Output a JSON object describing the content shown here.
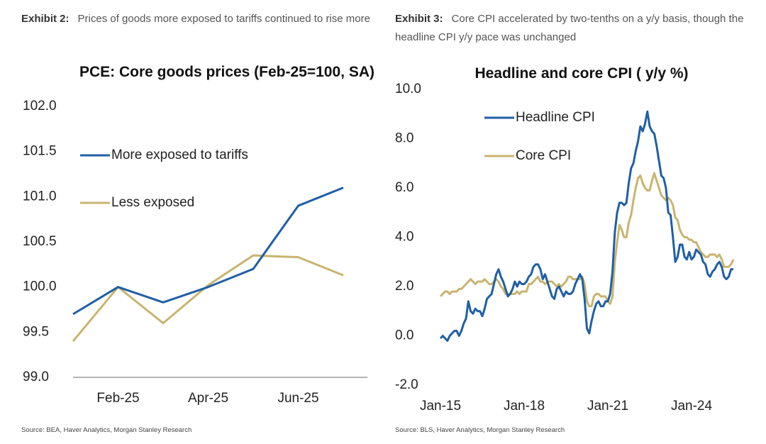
{
  "chart_data": [
    {
      "type": "line",
      "exhibit": "Exhibit 2:",
      "caption": "Prices of goods more exposed to tariffs continued to rise more",
      "title": "PCE: Core goods prices (Feb-25=100, SA)",
      "source": "Source: BEA, Haver Analytics, Morgan Stanley Research",
      "x": [
        "2025-01",
        "2025-02",
        "2025-03",
        "2025-04",
        "2025-05",
        "2025-06",
        "2025-07"
      ],
      "xlim": [
        "2025-01",
        "2025-07"
      ],
      "xticks": [
        {
          "value": "2025-02",
          "label": "Feb-25"
        },
        {
          "value": "2025-04",
          "label": "Apr-25"
        },
        {
          "value": "2025-06",
          "label": "Jun-25"
        }
      ],
      "ylim": [
        99,
        102
      ],
      "yticks": [
        {
          "value": 99,
          "label": "99.0"
        },
        99.5,
        {
          "value": 100,
          "label": "100.0"
        },
        100.5,
        {
          "value": 101,
          "label": "101.0"
        },
        101.5,
        {
          "value": 102,
          "label": "102.0"
        }
      ],
      "legend": "top-left",
      "series": [
        {
          "name": "More exposed to tariffs",
          "color": "#1f5fa6",
          "values": [
            99.7,
            100.0,
            99.83,
            100.0,
            100.2,
            100.9,
            101.1
          ]
        },
        {
          "name": "Less exposed",
          "color": "#c9b46f",
          "values": [
            99.4,
            100.0,
            99.6,
            100.02,
            100.35,
            100.33,
            100.13
          ]
        }
      ]
    },
    {
      "type": "line",
      "exhibit": "Exhibit 3:",
      "caption": "Core CPI accelerated by two-tenths on a y/y basis, though the headline CPI y/y pace was unchanged",
      "title": "Headline and core CPI ( y/y %)",
      "source": "Source: BLS, Haver Analytics, Morgan Stanley Research",
      "x": [
        "2015-01",
        "2015-02",
        "2015-03",
        "2015-04",
        "2015-05",
        "2015-06",
        "2015-07",
        "2015-08",
        "2015-09",
        "2015-10",
        "2015-11",
        "2015-12",
        "2016-01",
        "2016-02",
        "2016-03",
        "2016-04",
        "2016-05",
        "2016-06",
        "2016-07",
        "2016-08",
        "2016-09",
        "2016-10",
        "2016-11",
        "2016-12",
        "2017-01",
        "2017-02",
        "2017-03",
        "2017-04",
        "2017-05",
        "2017-06",
        "2017-07",
        "2017-08",
        "2017-09",
        "2017-10",
        "2017-11",
        "2017-12",
        "2018-01",
        "2018-02",
        "2018-03",
        "2018-04",
        "2018-05",
        "2018-06",
        "2018-07",
        "2018-08",
        "2018-09",
        "2018-10",
        "2018-11",
        "2018-12",
        "2019-01",
        "2019-02",
        "2019-03",
        "2019-04",
        "2019-05",
        "2019-06",
        "2019-07",
        "2019-08",
        "2019-09",
        "2019-10",
        "2019-11",
        "2019-12",
        "2020-01",
        "2020-02",
        "2020-03",
        "2020-04",
        "2020-05",
        "2020-06",
        "2020-07",
        "2020-08",
        "2020-09",
        "2020-10",
        "2020-11",
        "2020-12",
        "2021-01",
        "2021-02",
        "2021-03",
        "2021-04",
        "2021-05",
        "2021-06",
        "2021-07",
        "2021-08",
        "2021-09",
        "2021-10",
        "2021-11",
        "2021-12",
        "2022-01",
        "2022-02",
        "2022-03",
        "2022-04",
        "2022-05",
        "2022-06",
        "2022-07",
        "2022-08",
        "2022-09",
        "2022-10",
        "2022-11",
        "2022-12",
        "2023-01",
        "2023-02",
        "2023-03",
        "2023-04",
        "2023-05",
        "2023-06",
        "2023-07",
        "2023-08",
        "2023-09",
        "2023-10",
        "2023-11",
        "2023-12",
        "2024-01",
        "2024-02",
        "2024-03",
        "2024-04",
        "2024-05",
        "2024-06",
        "2024-07",
        "2024-08",
        "2024-09",
        "2024-10",
        "2024-11",
        "2024-12",
        "2025-01",
        "2025-02",
        "2025-03",
        "2025-04",
        "2025-05",
        "2025-06",
        "2025-07"
      ],
      "xlim": [
        "2015-01",
        "2025-07"
      ],
      "xticks": [
        {
          "value": "2015-01",
          "label": "Jan-15"
        },
        {
          "value": "2018-01",
          "label": "Jan-18"
        },
        {
          "value": "2021-01",
          "label": "Jan-21"
        },
        {
          "value": "2024-01",
          "label": "Jan-24"
        }
      ],
      "ylim": [
        -2,
        10
      ],
      "yticks": [
        {
          "value": -2,
          "label": "-2.0"
        },
        {
          "value": 0,
          "label": "0.0"
        },
        {
          "value": 2,
          "label": "2.0"
        },
        {
          "value": 4,
          "label": "4.0"
        },
        {
          "value": 6,
          "label": "6.0"
        },
        {
          "value": 8,
          "label": "8.0"
        },
        {
          "value": 10,
          "label": "10.0"
        }
      ],
      "legend": "top-left",
      "series": [
        {
          "name": "Headline CPI",
          "color": "#1f5fa6",
          "values": [
            -0.1,
            0.0,
            -0.1,
            -0.2,
            0.0,
            0.1,
            0.2,
            0.2,
            0.0,
            0.2,
            0.5,
            0.7,
            1.4,
            1.0,
            0.9,
            1.1,
            1.0,
            1.0,
            0.8,
            1.1,
            1.5,
            1.6,
            1.7,
            2.1,
            2.5,
            2.7,
            2.4,
            2.2,
            1.9,
            1.6,
            1.7,
            1.9,
            2.2,
            2.0,
            2.2,
            2.1,
            2.1,
            2.2,
            2.4,
            2.5,
            2.8,
            2.9,
            2.9,
            2.7,
            2.3,
            2.5,
            2.2,
            1.9,
            1.6,
            1.5,
            1.9,
            2.0,
            1.8,
            1.6,
            1.8,
            1.7,
            1.7,
            1.8,
            2.1,
            2.3,
            2.5,
            2.3,
            1.5,
            0.3,
            0.1,
            0.6,
            1.0,
            1.3,
            1.4,
            1.2,
            1.2,
            1.4,
            1.4,
            1.7,
            2.6,
            4.2,
            5.0,
            5.4,
            5.4,
            5.3,
            5.4,
            6.2,
            6.8,
            7.0,
            7.5,
            7.9,
            8.5,
            8.3,
            8.6,
            9.1,
            8.5,
            8.3,
            8.2,
            7.7,
            7.1,
            6.5,
            6.4,
            6.0,
            5.0,
            4.9,
            4.0,
            3.0,
            3.2,
            3.7,
            3.7,
            3.2,
            3.1,
            3.4,
            3.1,
            3.2,
            3.5,
            3.4,
            3.3,
            3.0,
            2.9,
            2.5,
            2.4,
            2.6,
            2.7,
            2.9,
            3.0,
            2.8,
            2.4,
            2.3,
            2.4,
            2.7,
            2.7
          ]
        },
        {
          "name": "Core CPI",
          "color": "#c9b46f",
          "values": [
            1.6,
            1.7,
            1.8,
            1.8,
            1.7,
            1.8,
            1.8,
            1.8,
            1.9,
            1.9,
            2.0,
            2.1,
            2.2,
            2.3,
            2.2,
            2.1,
            2.2,
            2.2,
            2.2,
            2.3,
            2.2,
            2.1,
            2.1,
            2.2,
            2.3,
            2.2,
            2.0,
            1.9,
            1.7,
            1.7,
            1.7,
            1.7,
            1.7,
            1.8,
            1.7,
            1.8,
            1.8,
            1.8,
            2.1,
            2.1,
            2.2,
            2.3,
            2.4,
            2.2,
            2.2,
            2.1,
            2.2,
            2.2,
            2.2,
            2.1,
            2.0,
            2.1,
            2.0,
            2.1,
            2.2,
            2.4,
            2.4,
            2.3,
            2.3,
            2.3,
            2.3,
            2.4,
            2.1,
            1.4,
            1.2,
            1.2,
            1.6,
            1.7,
            1.7,
            1.6,
            1.6,
            1.6,
            1.4,
            1.3,
            1.6,
            3.0,
            3.8,
            4.5,
            4.3,
            4.0,
            4.0,
            4.6,
            4.9,
            5.5,
            6.0,
            6.4,
            6.5,
            6.2,
            6.0,
            5.9,
            5.9,
            6.3,
            6.6,
            6.3,
            6.0,
            5.7,
            5.6,
            5.5,
            5.6,
            5.5,
            5.3,
            4.8,
            4.7,
            4.3,
            4.1,
            4.0,
            4.0,
            3.9,
            3.9,
            3.8,
            3.8,
            3.6,
            3.4,
            3.3,
            3.2,
            3.2,
            3.3,
            3.3,
            3.3,
            3.2,
            3.3,
            3.1,
            2.8,
            2.8,
            2.8,
            2.9,
            3.1
          ]
        }
      ]
    }
  ]
}
